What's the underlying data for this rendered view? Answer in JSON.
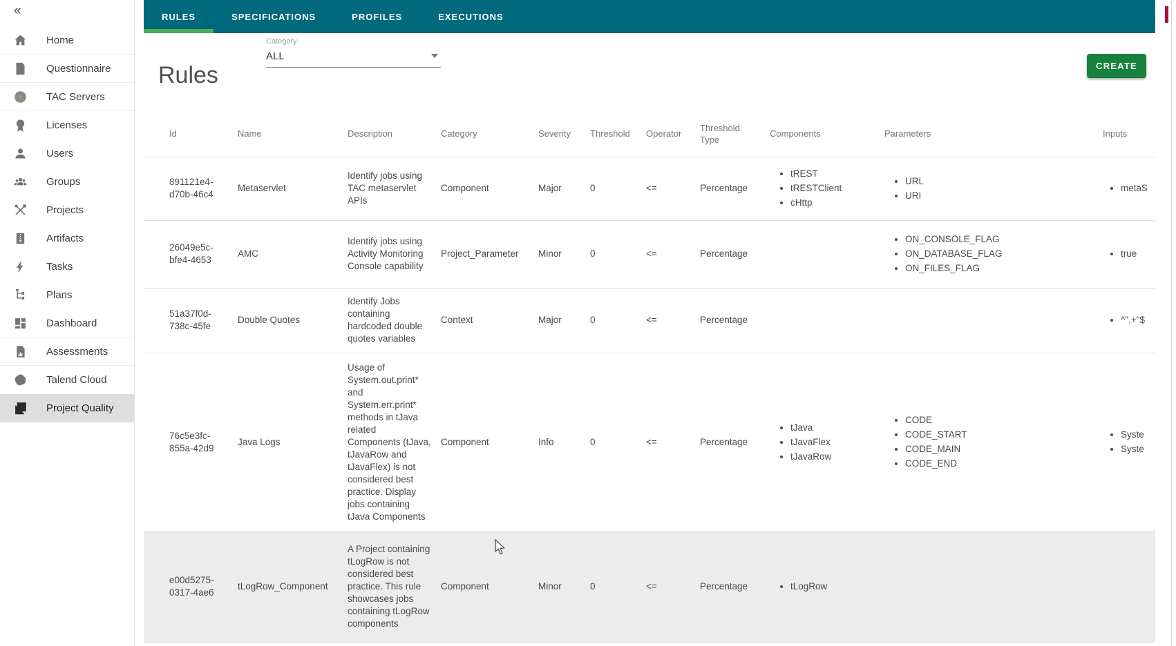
{
  "colors": {
    "topnav_background": "#00697C",
    "active_tab_underline": "#4CAF50",
    "create_button": "#17823C",
    "sidebar_selected": "#DEDEDE",
    "row_highlight": "#ECECEC"
  },
  "sidebar": {
    "items": [
      {
        "label": "Home",
        "icon": "home-icon",
        "selected": false,
        "divider_after": true
      },
      {
        "label": "Questionnaire",
        "icon": "questionnaire-icon",
        "selected": false,
        "divider_after": true
      },
      {
        "label": "TAC Servers",
        "icon": "tac-servers-icon",
        "selected": false,
        "divider_after": true
      },
      {
        "label": "Licenses",
        "icon": "licenses-icon",
        "selected": false,
        "divider_after": false
      },
      {
        "label": "Users",
        "icon": "users-icon",
        "selected": false,
        "divider_after": false
      },
      {
        "label": "Groups",
        "icon": "groups-icon",
        "selected": false,
        "divider_after": false
      },
      {
        "label": "Projects",
        "icon": "projects-icon",
        "selected": false,
        "divider_after": false
      },
      {
        "label": "Artifacts",
        "icon": "artifacts-icon",
        "selected": false,
        "divider_after": false
      },
      {
        "label": "Tasks",
        "icon": "tasks-icon",
        "selected": false,
        "divider_after": false
      },
      {
        "label": "Plans",
        "icon": "plans-icon",
        "selected": false,
        "divider_after": false
      },
      {
        "label": "Dashboard",
        "icon": "dashboard-icon",
        "selected": false,
        "divider_after": true
      },
      {
        "label": "Assessments",
        "icon": "assessments-icon",
        "selected": false,
        "divider_after": true
      },
      {
        "label": "Talend Cloud",
        "icon": "talend-cloud-icon",
        "selected": false,
        "divider_after": false
      },
      {
        "label": "Project Quality",
        "icon": "project-quality-icon",
        "selected": true,
        "divider_after": false
      }
    ]
  },
  "topnav": {
    "tabs": [
      {
        "label": "RULES",
        "active": true
      },
      {
        "label": "SPECIFICATIONS",
        "active": false
      },
      {
        "label": "PROFILES",
        "active": false
      },
      {
        "label": "EXECUTIONS",
        "active": false
      }
    ]
  },
  "page": {
    "title": "Rules",
    "category_label": "Category",
    "category_value": "ALL",
    "create_label": "CREATE"
  },
  "table": {
    "columns": [
      "Id",
      "Name",
      "Description",
      "Category",
      "Severity",
      "Threshold",
      "Operator",
      "Threshold Type",
      "Components",
      "Parameters",
      "Inputs"
    ],
    "rows": [
      {
        "id": "891121e4-d70b-46c4",
        "name": "Metaservlet",
        "description": "Identify jobs using TAC metaservlet APIs",
        "category": "Component",
        "severity": "Major",
        "threshold": "0",
        "operator": "<=",
        "threshold_type": "Percentage",
        "components": [
          "tREST",
          "tRESTClient",
          "cHttp"
        ],
        "parameters": [
          "URL",
          "URI"
        ],
        "inputs": [
          "metaS"
        ],
        "highlighted": false
      },
      {
        "id": "26049e5c-bfe4-4653",
        "name": "AMC",
        "description": "Identify jobs using Activity Monitoring Console capability",
        "category": "Project_Parameter",
        "severity": "Minor",
        "threshold": "0",
        "operator": "<=",
        "threshold_type": "Percentage",
        "components": [],
        "parameters": [
          "ON_CONSOLE_FLAG",
          "ON_DATABASE_FLAG",
          "ON_FILES_FLAG"
        ],
        "inputs": [
          "true"
        ],
        "highlighted": false
      },
      {
        "id": "51a37f0d-738c-45fe",
        "name": "Double Quotes",
        "description": "Identify Jobs containing hardcoded double quotes variables",
        "category": "Context",
        "severity": "Major",
        "threshold": "0",
        "operator": "<=",
        "threshold_type": "Percentage",
        "components": [],
        "parameters": [],
        "inputs": [
          "^\".+\"$"
        ],
        "highlighted": false
      },
      {
        "id": "76c5e3fc-855a-42d9",
        "name": "Java Logs",
        "description": "Usage of System.out.print* and System.err.print* methods in tJava related Components (tJava, tJavaRow and tJavaFlex) is not considered best practice. Display jobs containing tJava Components",
        "category": "Component",
        "severity": "Info",
        "threshold": "0",
        "operator": "<=",
        "threshold_type": "Percentage",
        "components": [
          "tJava",
          "tJavaFlex",
          "tJavaRow"
        ],
        "parameters": [
          "CODE",
          "CODE_START",
          "CODE_MAIN",
          "CODE_END"
        ],
        "inputs": [
          "Syste",
          "Syste"
        ],
        "highlighted": false
      },
      {
        "id": "e00d5275-0317-4ae6",
        "name": "tLogRow_Component",
        "description": "A Project containing tLogRow is not considered best practice. This rule showcases jobs containing tLogRow components",
        "category": "Component",
        "severity": "Minor",
        "threshold": "0",
        "operator": "<=",
        "threshold_type": "Percentage",
        "components": [
          "tLogRow"
        ],
        "parameters": [],
        "inputs": [],
        "highlighted": true
      }
    ]
  }
}
